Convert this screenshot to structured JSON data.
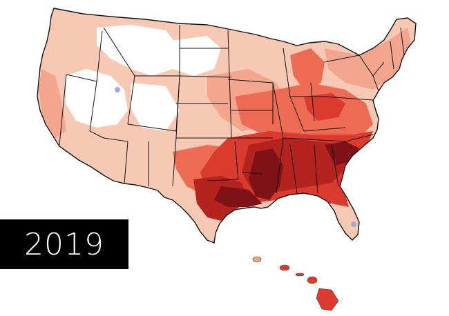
{
  "year_label": "2019",
  "palette": {
    "lightest": "#f7c9b4",
    "light": "#f3a58d",
    "medium": "#ec6b52",
    "strong": "#db3a2e",
    "dark": "#b5231f",
    "darkest": "#7f1216",
    "water": "#a9a9d8",
    "border": "#111111"
  }
}
